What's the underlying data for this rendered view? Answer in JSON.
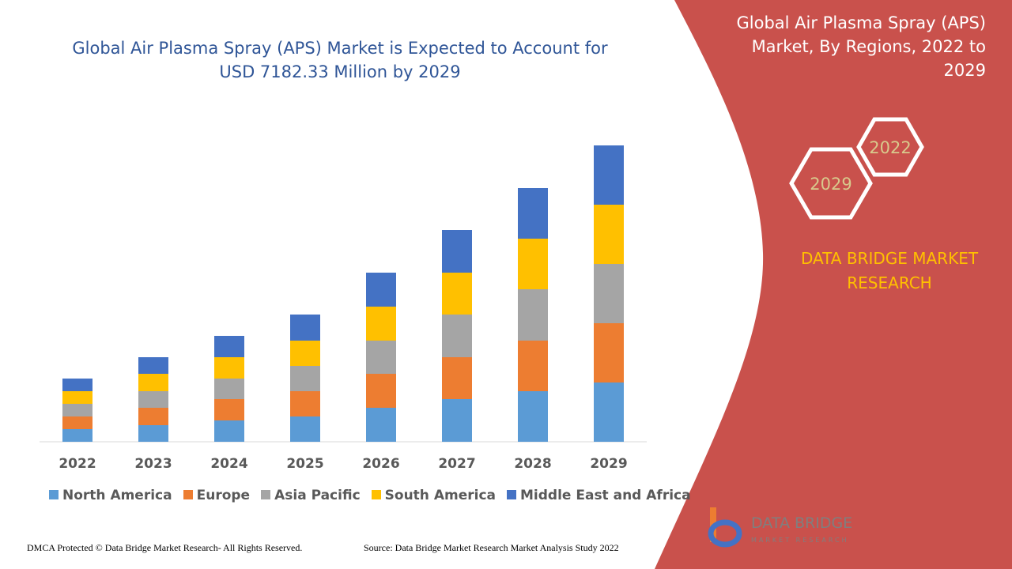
{
  "chart_data": {
    "type": "stacked-bar",
    "title": "Global Air Plasma Spray (APS) Market is Expected to Account for USD 7182.33 Million by 2029",
    "categories": [
      "2022",
      "2023",
      "2024",
      "2025",
      "2026",
      "2027",
      "2028",
      "2029"
    ],
    "series": [
      {
        "name": "North America",
        "color": "#5b9bd5",
        "values": [
          16,
          21,
          27,
          32,
          43,
          54,
          64,
          75
        ]
      },
      {
        "name": "Europe",
        "color": "#ed7d31",
        "values": [
          16,
          22,
          27,
          32,
          43,
          53,
          64,
          75
        ]
      },
      {
        "name": "Asia Pacific",
        "color": "#a5a5a5",
        "values": [
          16,
          21,
          26,
          32,
          42,
          54,
          65,
          75
        ]
      },
      {
        "name": "South America",
        "color": "#ffc000",
        "values": [
          16,
          22,
          27,
          32,
          43,
          53,
          64,
          75
        ]
      },
      {
        "name": "Middle East and Africa",
        "color": "#4472c4",
        "values": [
          16,
          21,
          27,
          33,
          43,
          54,
          64,
          75
        ]
      }
    ],
    "ylim": [
      0,
      375
    ],
    "legend": "bottom"
  },
  "side_panel": {
    "title": "Global Air Plasma Spray (APS) Market, By Regions, 2022 to 2029",
    "hex_labels": [
      "2022",
      "2029"
    ],
    "brand": "DATA BRIDGE MARKET RESEARCH"
  },
  "logo": {
    "name": "DATA BRIDGE",
    "tagline": "MARKET RESEARCH"
  },
  "footer": {
    "copyright": "DMCA Protected © Data Bridge Market Research- All Rights Reserved.",
    "source": "Source: Data Bridge Market Research Market Analysis Study 2022"
  }
}
